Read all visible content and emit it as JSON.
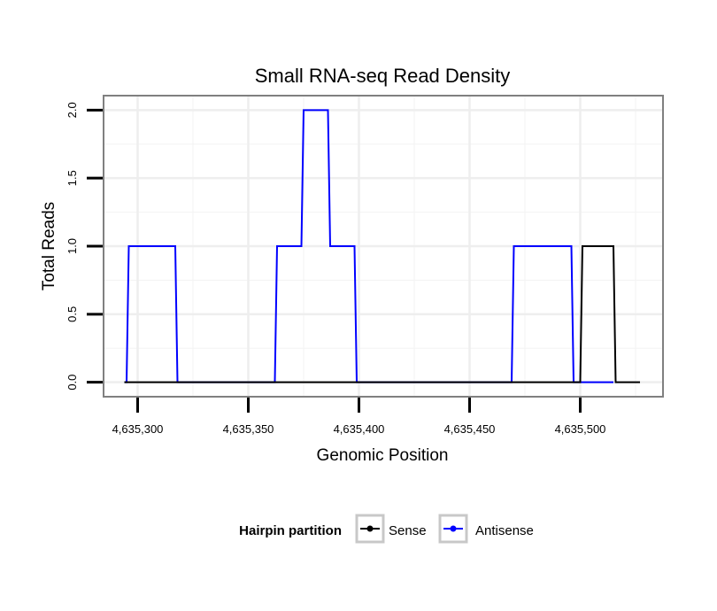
{
  "chart_data": {
    "type": "line",
    "title": "Small RNA-seq Read Density",
    "xlabel": "Genomic Position",
    "ylabel": "Total Reads",
    "xlim": [
      4635285,
      4635537
    ],
    "ylim": [
      -0.1,
      2.1
    ],
    "x_ticks": [
      4635300,
      4635350,
      4635400,
      4635450,
      4635500
    ],
    "x_tick_labels": [
      "4,635,300",
      "4,635,350",
      "4,635,400",
      "4,635,450",
      "4,635,500"
    ],
    "y_ticks": [
      0,
      0.5,
      1,
      1.5,
      2
    ],
    "y_tick_labels": [
      "0.0",
      "0.5",
      "1.0",
      "1.5",
      "2.0"
    ],
    "grid": true,
    "legend": {
      "title": "Hairpin partition",
      "position": "bottom"
    },
    "series": [
      {
        "name": "Sense",
        "color": "#000000",
        "x": [
          4635294,
          4635500,
          4635501,
          4635515,
          4635516,
          4635527
        ],
        "y": [
          0,
          0,
          1,
          1,
          0,
          0
        ]
      },
      {
        "name": "Antisense",
        "color": "#0000ff",
        "x": [
          4635294,
          4635295,
          4635296,
          4635317,
          4635318,
          4635362,
          4635363,
          4635374,
          4635375,
          4635386,
          4635387,
          4635398,
          4635399,
          4635469,
          4635470,
          4635496,
          4635497,
          4635499,
          4635500,
          4635515
        ],
        "y": [
          0,
          0,
          1,
          1,
          0,
          0,
          1,
          1,
          2,
          2,
          1,
          1,
          0,
          0,
          1,
          1,
          0,
          0,
          0,
          0
        ]
      }
    ]
  }
}
